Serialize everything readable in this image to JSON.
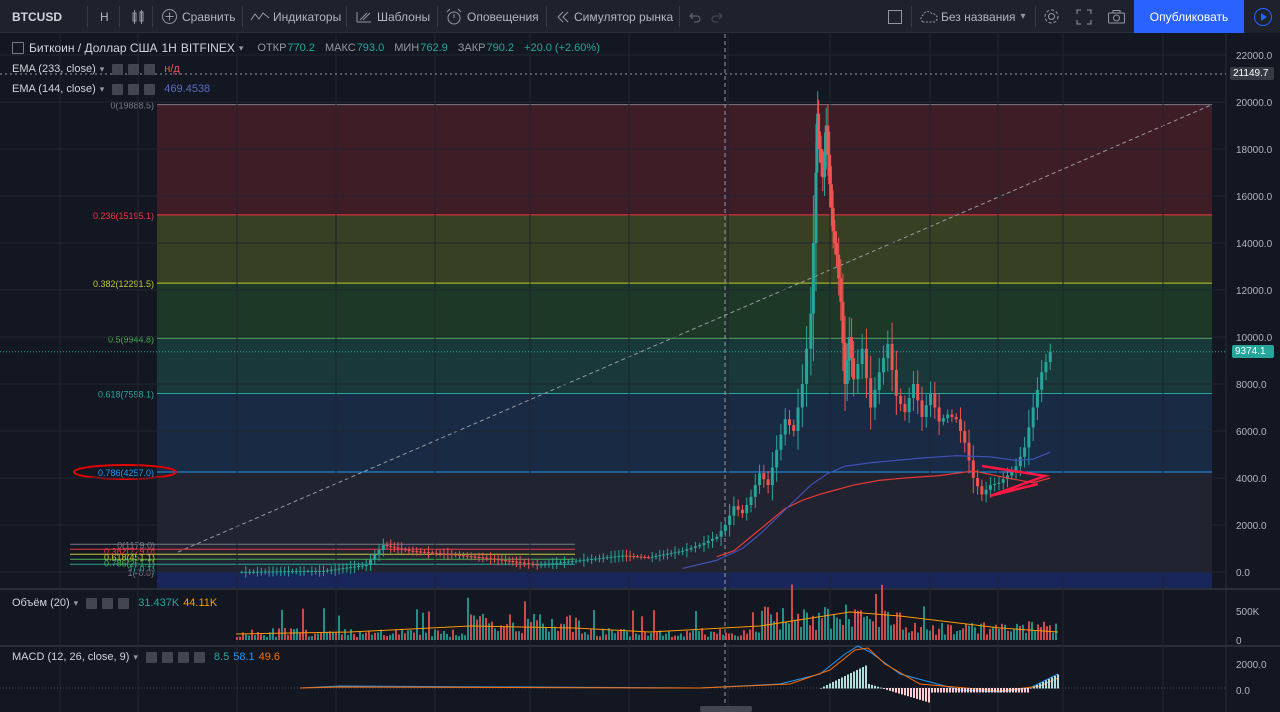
{
  "toolbar": {
    "symbol": "BTCUSD",
    "interval": "H",
    "compare": "Сравнить",
    "indicators": "Индикаторы",
    "templates": "Шаблоны",
    "alerts": "Оповещения",
    "replay": "Симулятор рынка",
    "layout_name": "Без названия",
    "publish": "Опубликовать"
  },
  "legend": {
    "title": "Биткоин / Доллар США",
    "interval": "1Н",
    "exchange": "BITFINEX",
    "open_label": "ОТКР",
    "open_value": "770.2",
    "high_label": "МАКС",
    "high_value": "793.0",
    "low_label": "МИН",
    "low_value": "762.9",
    "close_label": "ЗАКР",
    "close_value": "790.2",
    "change": "+20.0 (+2.60%)",
    "ema1_name": "EMA (233, close)",
    "ema1_value": "н/д",
    "ema2_name": "EMA (144, close)",
    "ema2_value": "469.4538"
  },
  "volume_legend": {
    "name": "Объём (20)",
    "value1": "31.437K",
    "value2": "44.11K"
  },
  "macd_legend": {
    "name": "MACD (12, 26, close, 9)",
    "value1": "8.5",
    "value2": "58.1",
    "value3": "49.6"
  },
  "price_tags": {
    "crosshair": "21149.7",
    "last": "9374.1"
  },
  "colors": {
    "up": "#26a69a",
    "down": "#ef5350",
    "background": "#131722",
    "accent": "#2962ff"
  },
  "chart_data": [
    {
      "type": "line",
      "title": "Биткоин / Доллар США · 1Н · BITFINEX",
      "ylim": [
        -600,
        22700
      ],
      "yticks": [
        "22000.0",
        "20000.0",
        "18000.0",
        "16000.0",
        "14000.0",
        "12000.0",
        "10000.0",
        "8000.0",
        "6000.0",
        "4000.0",
        "2000.0",
        "0.0"
      ],
      "price_path": [
        [
          0,
          0
        ],
        [
          5,
          30
        ],
        [
          10,
          50
        ],
        [
          15,
          300
        ],
        [
          17,
          1150
        ],
        [
          20,
          900
        ],
        [
          25,
          750
        ],
        [
          30,
          550
        ],
        [
          33,
          400
        ],
        [
          35,
          300
        ],
        [
          40,
          500
        ],
        [
          45,
          700
        ],
        [
          48,
          620
        ],
        [
          52,
          900
        ],
        [
          54,
          1150
        ],
        [
          56,
          1500
        ],
        [
          57,
          2000
        ],
        [
          58,
          2800
        ],
        [
          59,
          2500
        ],
        [
          60,
          3200
        ],
        [
          61,
          4200
        ],
        [
          62,
          3700
        ],
        [
          63,
          5200
        ],
        [
          64,
          6500
        ],
        [
          65,
          6000
        ],
        [
          66,
          8000
        ],
        [
          67,
          11000
        ],
        [
          67.6,
          17000
        ],
        [
          67.8,
          19500
        ],
        [
          68,
          18000
        ],
        [
          68.4,
          16800
        ],
        [
          68.8,
          19000
        ],
        [
          69.2,
          16500
        ],
        [
          69.6,
          14500
        ],
        [
          70,
          13500
        ],
        [
          70.5,
          11500
        ],
        [
          71,
          8000
        ],
        [
          71.5,
          10000
        ],
        [
          72,
          8200
        ],
        [
          73,
          9500
        ],
        [
          74,
          7000
        ],
        [
          75,
          8500
        ],
        [
          76,
          9700
        ],
        [
          77,
          7500
        ],
        [
          78,
          6800
        ],
        [
          79,
          8000
        ],
        [
          80,
          6600
        ],
        [
          81,
          7600
        ],
        [
          82,
          6400
        ],
        [
          83,
          6700
        ],
        [
          84,
          6500
        ],
        [
          85,
          5500
        ],
        [
          86,
          4000
        ],
        [
          87,
          3300
        ],
        [
          88,
          3700
        ],
        [
          89,
          3800
        ],
        [
          90,
          4100
        ],
        [
          91,
          4500
        ],
        [
          92,
          5300
        ],
        [
          93,
          7000
        ],
        [
          94,
          8500
        ],
        [
          95,
          9374
        ]
      ],
      "ema233_path": [
        [
          56,
          650
        ],
        [
          58,
          900
        ],
        [
          60,
          1500
        ],
        [
          62,
          2100
        ],
        [
          64,
          2700
        ],
        [
          66,
          3050
        ],
        [
          68,
          3300
        ],
        [
          70,
          3500
        ],
        [
          72,
          3700
        ],
        [
          75,
          3900
        ],
        [
          78,
          4000
        ],
        [
          82,
          4100
        ],
        [
          86,
          4300
        ],
        [
          90,
          4000
        ],
        [
          93,
          3800
        ],
        [
          95,
          4000
        ]
      ],
      "ema144_path": [
        [
          52,
          150
        ],
        [
          56,
          500
        ],
        [
          59,
          1000
        ],
        [
          61,
          1600
        ],
        [
          63,
          2300
        ],
        [
          65,
          3000
        ],
        [
          67,
          3700
        ],
        [
          69,
          4200
        ],
        [
          71,
          4500
        ],
        [
          74,
          4650
        ],
        [
          77,
          4750
        ],
        [
          80,
          4850
        ],
        [
          84,
          4950
        ],
        [
          88,
          4900
        ],
        [
          91,
          4750
        ],
        [
          93,
          4800
        ],
        [
          95,
          5100
        ]
      ],
      "fibonacci": [
        {
          "level": "0(19888.5)",
          "price": 19888.5,
          "color": "#787b86"
        },
        {
          "level": "0.236(15195.1)",
          "price": 15195.1,
          "color": "#f23645"
        },
        {
          "level": "0.382(12291.5)",
          "price": 12291.5,
          "color": "#c0ca33"
        },
        {
          "level": "0.5(9944.8)",
          "price": 9944.8,
          "color": "#4caf50"
        },
        {
          "level": "0.618(7598.1)",
          "price": 7598.1,
          "color": "#26a69a"
        },
        {
          "level": "0.786(4257.0)",
          "price": 4257.0,
          "color": "#2196f3"
        },
        {
          "level": "1(-0.0)",
          "price": 0,
          "color": "#787b86"
        }
      ],
      "small_fib_labels": [
        "0(1179.0)",
        "0.382(729.0)",
        "0.618(451.1)",
        "0.786(251.1)",
        "1(-0.1)"
      ]
    },
    {
      "type": "bar",
      "title": "Объём (20)",
      "yticks": [
        "500K",
        "0"
      ]
    },
    {
      "type": "bar",
      "title": "MACD (12, 26, close, 9)",
      "yticks": [
        "2000.0",
        "0.0"
      ]
    }
  ]
}
